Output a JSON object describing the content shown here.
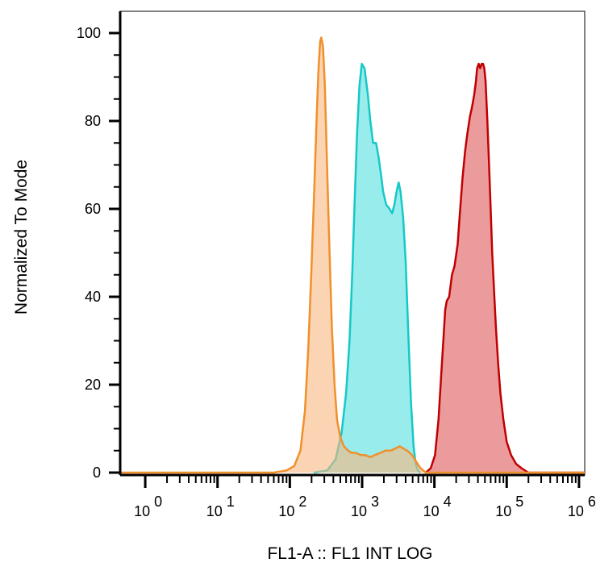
{
  "chart_data": {
    "type": "area",
    "xlabel": "FL1-A :: FL1 INT LOG",
    "ylabel": "Normalized To Mode",
    "xscale": "log",
    "xlim": [
      0.45,
      1200000
    ],
    "ylim": [
      0,
      100
    ],
    "y_ticks": [
      {
        "value": 0,
        "label": "0"
      },
      {
        "value": 20,
        "label": "20"
      },
      {
        "value": 40,
        "label": "40"
      },
      {
        "value": 60,
        "label": "60"
      },
      {
        "value": 80,
        "label": "80"
      },
      {
        "value": 100,
        "label": "100"
      }
    ],
    "x_ticks": [
      {
        "value": 1,
        "base": "10",
        "exp": "0"
      },
      {
        "value": 10,
        "base": "10",
        "exp": "1"
      },
      {
        "value": 100,
        "base": "10",
        "exp": "2"
      },
      {
        "value": 1000,
        "base": "10",
        "exp": "3"
      },
      {
        "value": 10000,
        "base": "10",
        "exp": "4"
      },
      {
        "value": 100000,
        "base": "10",
        "exp": "5"
      },
      {
        "value": 1000000,
        "base": "10",
        "exp": "6"
      }
    ],
    "grid": false,
    "legend": "none",
    "series": [
      {
        "stroke": "#c00000",
        "fill": "#e06666",
        "fill_opacity": 0.65,
        "points": [
          [
            7600,
            0
          ],
          [
            8900,
            1
          ],
          [
            10200,
            4
          ],
          [
            11400,
            12
          ],
          [
            12400,
            22
          ],
          [
            13300,
            30
          ],
          [
            14100,
            37
          ],
          [
            14800,
            39
          ],
          [
            16000,
            40
          ],
          [
            17500,
            45
          ],
          [
            19000,
            47
          ],
          [
            21000,
            52
          ],
          [
            22500,
            59
          ],
          [
            24500,
            67
          ],
          [
            26500,
            73
          ],
          [
            28500,
            77
          ],
          [
            31000,
            81
          ],
          [
            33000,
            83
          ],
          [
            35500,
            86
          ],
          [
            37500,
            89
          ],
          [
            39000,
            92
          ],
          [
            41000,
            93
          ],
          [
            43000,
            92
          ],
          [
            45000,
            93
          ],
          [
            47000,
            93
          ],
          [
            49000,
            92
          ],
          [
            51000,
            89
          ],
          [
            54000,
            80
          ],
          [
            57000,
            70
          ],
          [
            60000,
            60
          ],
          [
            63000,
            50
          ],
          [
            67000,
            41
          ],
          [
            71000,
            33
          ],
          [
            76000,
            25
          ],
          [
            82000,
            18
          ],
          [
            90000,
            12
          ],
          [
            100000,
            7
          ],
          [
            115000,
            4
          ],
          [
            135000,
            2
          ],
          [
            160000,
            1
          ],
          [
            200000,
            0
          ],
          [
            1200000,
            0
          ]
        ]
      },
      {
        "stroke": "#16c8c8",
        "fill": "#55e0e0",
        "fill_opacity": 0.6,
        "points": [
          [
            215,
            0
          ],
          [
            330,
            0.5
          ],
          [
            430,
            3
          ],
          [
            520,
            9
          ],
          [
            600,
            18
          ],
          [
            670,
            30
          ],
          [
            730,
            45
          ],
          [
            790,
            62
          ],
          [
            850,
            77
          ],
          [
            920,
            88
          ],
          [
            990,
            93
          ],
          [
            1080,
            92
          ],
          [
            1200,
            86
          ],
          [
            1300,
            80
          ],
          [
            1420,
            75
          ],
          [
            1560,
            75
          ],
          [
            1680,
            72
          ],
          [
            1820,
            68
          ],
          [
            1950,
            64
          ],
          [
            2150,
            61
          ],
          [
            2400,
            60
          ],
          [
            2600,
            59
          ],
          [
            2800,
            61
          ],
          [
            3000,
            64
          ],
          [
            3200,
            66
          ],
          [
            3400,
            64
          ],
          [
            3700,
            58
          ],
          [
            4000,
            48
          ],
          [
            4350,
            32
          ],
          [
            4750,
            16
          ],
          [
            5150,
            6
          ],
          [
            5500,
            2
          ],
          [
            5900,
            0.5
          ],
          [
            6400,
            0
          ]
        ]
      },
      {
        "stroke": "#f0902c",
        "fill": "#f8b880",
        "fill_opacity": 0.6,
        "points": [
          [
            0.45,
            0
          ],
          [
            60,
            0
          ],
          [
            90,
            0.5
          ],
          [
            115,
            1.5
          ],
          [
            140,
            5
          ],
          [
            162,
            14
          ],
          [
            180,
            28
          ],
          [
            198,
            45
          ],
          [
            215,
            62
          ],
          [
            232,
            78
          ],
          [
            248,
            91
          ],
          [
            262,
            98
          ],
          [
            272,
            99
          ],
          [
            288,
            97
          ],
          [
            305,
            88
          ],
          [
            325,
            72
          ],
          [
            352,
            52
          ],
          [
            382,
            33
          ],
          [
            415,
            20
          ],
          [
            450,
            12
          ],
          [
            500,
            8
          ],
          [
            560,
            6
          ],
          [
            640,
            5
          ],
          [
            720,
            4.5
          ],
          [
            820,
            4.5
          ],
          [
            950,
            4
          ],
          [
            1100,
            4
          ],
          [
            1300,
            3.5
          ],
          [
            1500,
            4
          ],
          [
            1800,
            4.5
          ],
          [
            2100,
            5
          ],
          [
            2500,
            5
          ],
          [
            2900,
            5.5
          ],
          [
            3300,
            6
          ],
          [
            3700,
            5.5
          ],
          [
            4200,
            5
          ],
          [
            4900,
            4
          ],
          [
            5600,
            2.5
          ],
          [
            6400,
            1
          ],
          [
            7600,
            0
          ],
          [
            1200000,
            0
          ]
        ]
      }
    ]
  }
}
